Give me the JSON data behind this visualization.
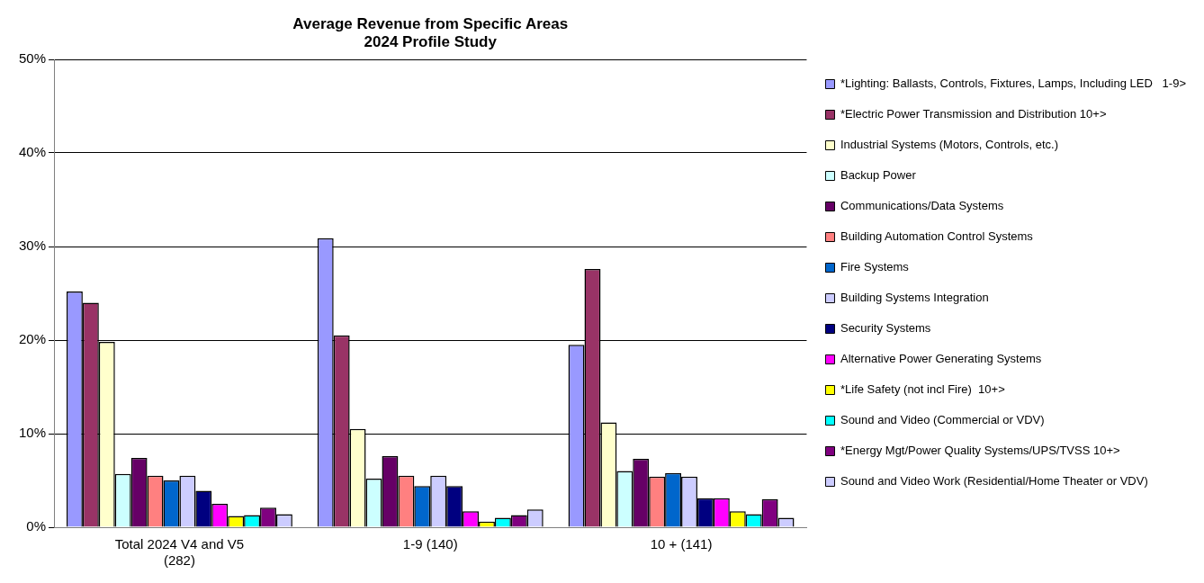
{
  "chart_data": {
    "type": "bar",
    "title": "Average Revenue from Specific Areas",
    "subtitle": "2024 Profile Study",
    "categories": [
      "Total 2024 V4 and V5 (282)",
      "1-9 (140)",
      "10 + (141)"
    ],
    "ylim": [
      0,
      50
    ],
    "yticks": [
      {
        "value": 0,
        "label": "0%"
      },
      {
        "value": 10,
        "label": "10%"
      },
      {
        "value": 20,
        "label": "20%"
      },
      {
        "value": 30,
        "label": "30%"
      },
      {
        "value": 40,
        "label": "40%"
      },
      {
        "value": 50,
        "label": "50%"
      }
    ],
    "grid": "y",
    "legend": "right",
    "series": [
      {
        "name": "*Lighting: Ballasts, Controls, Fixtures, Lamps, Including LED   1-9>",
        "color": "#9999ff",
        "values": [
          25.2,
          30.9,
          19.5
        ]
      },
      {
        "name": "*Electric Power Transmission and Distribution 10+>",
        "color": "#993366",
        "values": [
          24.0,
          20.5,
          27.6
        ]
      },
      {
        "name": "Industrial Systems (Motors, Controls, etc.)",
        "color": "#ffffcc",
        "values": [
          19.8,
          10.5,
          11.2
        ]
      },
      {
        "name": "Backup Power",
        "color": "#ccffff",
        "values": [
          5.7,
          5.2,
          6.0
        ]
      },
      {
        "name": "Communications/Data Systems",
        "color": "#660066",
        "values": [
          7.4,
          7.6,
          7.3
        ]
      },
      {
        "name": "Building Automation Control Systems",
        "color": "#ff8080",
        "values": [
          5.5,
          5.5,
          5.4
        ]
      },
      {
        "name": "Fire Systems",
        "color": "#0066cc",
        "values": [
          5.0,
          4.4,
          5.8
        ]
      },
      {
        "name": "Building Systems Integration",
        "color": "#ccccff",
        "values": [
          5.5,
          5.5,
          5.4
        ]
      },
      {
        "name": "Security Systems",
        "color": "#000080",
        "values": [
          3.9,
          4.4,
          3.1
        ]
      },
      {
        "name": "Alternative Power Generating Systems",
        "color": "#ff00ff",
        "values": [
          2.5,
          1.7,
          3.1
        ]
      },
      {
        "name": "*Life Safety (not incl Fire)  10+>",
        "color": "#ffff00",
        "values": [
          1.2,
          0.6,
          1.7
        ]
      },
      {
        "name": "Sound and Video (Commercial or VDV)",
        "color": "#00ffff",
        "values": [
          1.3,
          1.0,
          1.4
        ]
      },
      {
        "name": "*Energy Mgt/Power Quality Systems/UPS/TVSS 10+>",
        "color": "#800080",
        "values": [
          2.1,
          1.3,
          3.0
        ]
      },
      {
        "name": "Sound and Video Work (Residential/Home Theater or VDV)",
        "color": "#ccccff",
        "values": [
          1.4,
          1.9,
          1.0
        ]
      }
    ]
  }
}
